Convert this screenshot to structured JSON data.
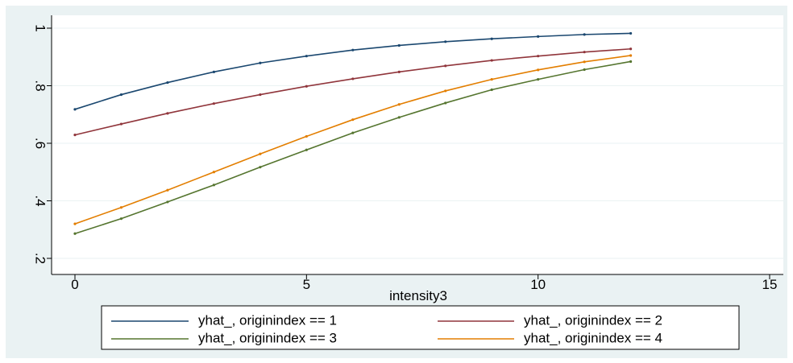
{
  "chart_data": {
    "type": "line",
    "title": "",
    "xlabel": "intensity3",
    "ylabel": "",
    "xlim": [
      0,
      15
    ],
    "ylim": [
      0.2,
      1.0
    ],
    "xticks": [
      0,
      5,
      10,
      15
    ],
    "xtick_labels": [
      "0",
      "5",
      "10",
      "15"
    ],
    "yticks": [
      0.2,
      0.4,
      0.6,
      0.8,
      1.0
    ],
    "ytick_labels": [
      ".2",
      ".4",
      ".6",
      ".8",
      "1"
    ],
    "grid": "horizontal",
    "legend_position": "bottom",
    "x": [
      0,
      1,
      2,
      3,
      4,
      5,
      6,
      7,
      8,
      9,
      10,
      11,
      12
    ],
    "series": [
      {
        "name": "yhat_, originindex == 1",
        "color": "#1a476f",
        "values": [
          0.718,
          0.769,
          0.811,
          0.848,
          0.879,
          0.903,
          0.924,
          0.94,
          0.953,
          0.963,
          0.971,
          0.978,
          0.982
        ]
      },
      {
        "name": "yhat_, originindex == 2",
        "color": "#90353b",
        "values": [
          0.629,
          0.667,
          0.704,
          0.738,
          0.769,
          0.798,
          0.824,
          0.848,
          0.869,
          0.888,
          0.903,
          0.917,
          0.928
        ]
      },
      {
        "name": "yhat_, originindex == 3",
        "color": "#55752f",
        "values": [
          0.286,
          0.338,
          0.396,
          0.455,
          0.517,
          0.577,
          0.636,
          0.69,
          0.74,
          0.786,
          0.822,
          0.856,
          0.884
        ]
      },
      {
        "name": "yhat_, originindex == 4",
        "color": "#e37e00",
        "values": [
          0.32,
          0.377,
          0.437,
          0.5,
          0.563,
          0.624,
          0.682,
          0.735,
          0.782,
          0.822,
          0.855,
          0.883,
          0.905
        ]
      }
    ]
  }
}
